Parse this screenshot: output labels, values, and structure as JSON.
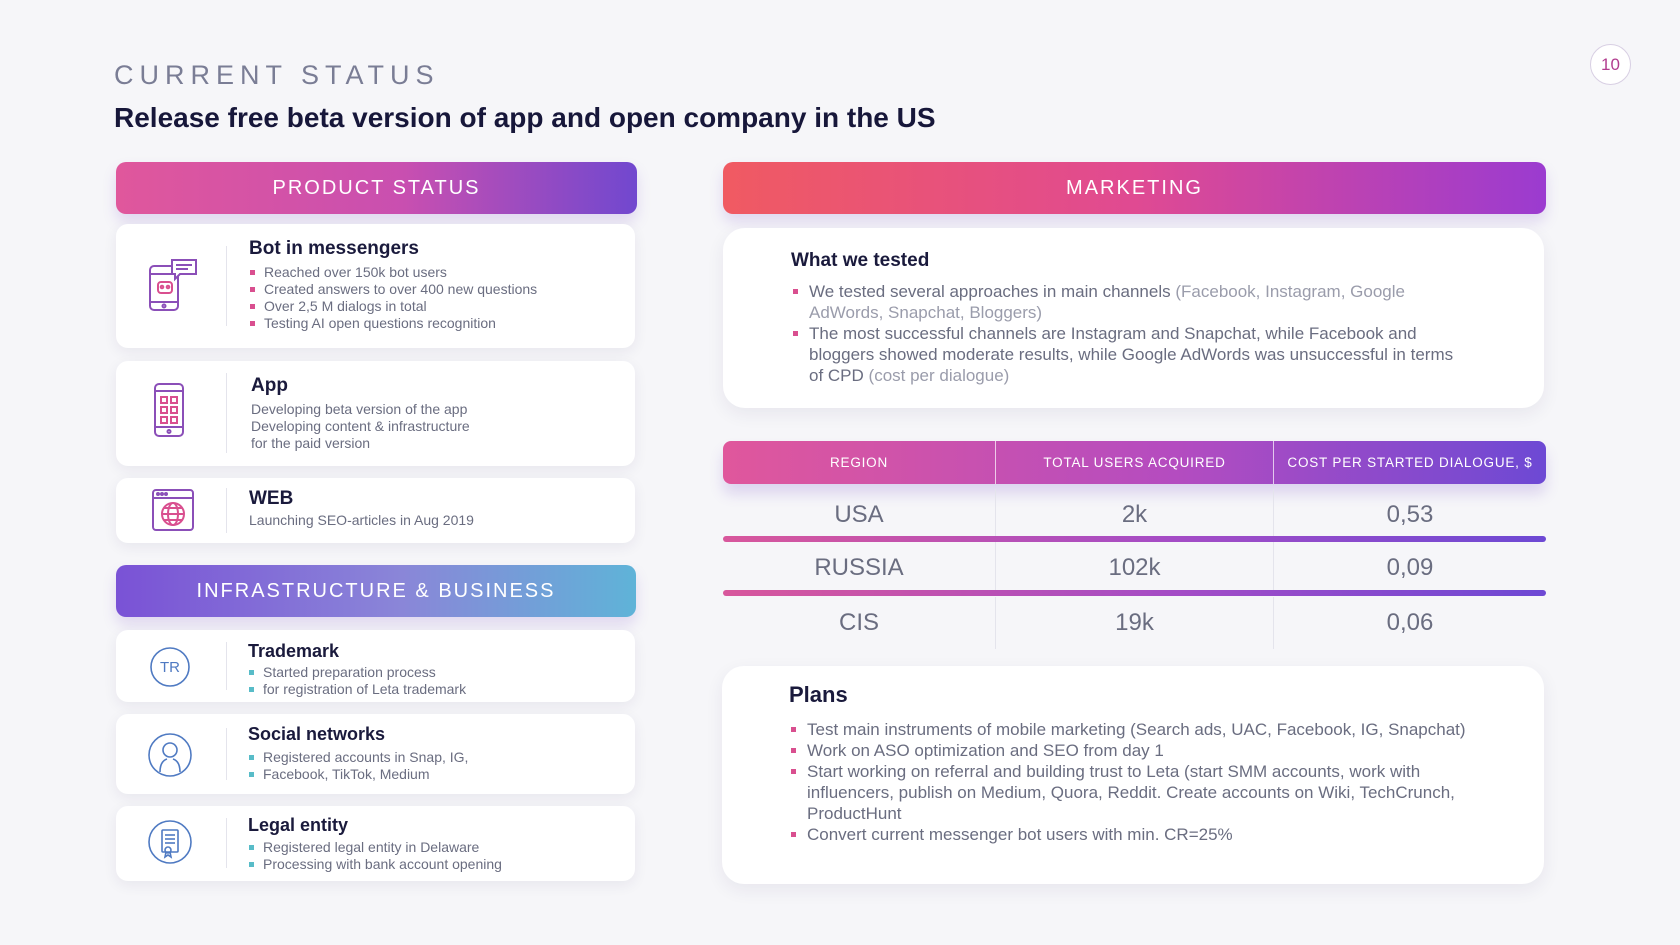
{
  "header": {
    "kicker": "CURRENT STATUS",
    "headline": "Release free beta version of app and open company in the US",
    "page_number": "10"
  },
  "product_status": {
    "label": "PRODUCT STATUS",
    "cards": [
      {
        "icon": "chat-phone-icon",
        "title": "Bot in messengers",
        "bullets": [
          "Reached over 150k bot users",
          "Created answers to over 400 new questions",
          "Over 2,5 M dialogs in total",
          "Testing AI open questions recognition"
        ]
      },
      {
        "icon": "phone-apps-icon",
        "title": "App",
        "lines": [
          "Developing beta version of the app",
          "Developing content & infrastructure",
          "for the paid version"
        ]
      },
      {
        "icon": "browser-globe-icon",
        "title": "WEB",
        "lines": [
          "Launching SEO-articles in Aug 2019"
        ]
      }
    ]
  },
  "infrastructure": {
    "label": "INFRASTRUCTURE & BUSINESS",
    "cards": [
      {
        "icon": "trademark-icon",
        "icon_text": "TR",
        "title": "Trademark",
        "bullets": [
          "Started preparation process",
          "for registration of Leta trademark"
        ]
      },
      {
        "icon": "user-icon",
        "title": "Social networks",
        "bullets": [
          "Registered accounts in Snap, IG,",
          "Facebook, TikTok, Medium"
        ]
      },
      {
        "icon": "certificate-icon",
        "title": "Legal entity",
        "bullets": [
          "Registered legal entity in Delaware",
          "Processing with bank account opening"
        ]
      }
    ]
  },
  "marketing": {
    "label": "MARKETING",
    "tested": {
      "title": "What we tested",
      "items": [
        {
          "text": "We tested several approaches in main channels",
          "muted": "(Facebook, Instagram, Google AdWords, Snapchat, Bloggers)"
        },
        {
          "text": "The most successful channels are Instagram and Snapchat, while Facebook and bloggers showed moderate results, while Google AdWords was unsuccessful in terms of CPD",
          "muted": "(cost per dialogue)"
        }
      ]
    },
    "table": {
      "headers": [
        "REGION",
        "TOTAL USERS ACQUIRED",
        "COST PER STARTED DIALOGUE, $"
      ],
      "rows": [
        [
          "USA",
          "2k",
          "0,53"
        ],
        [
          "RUSSIA",
          "102k",
          "0,09"
        ],
        [
          "CIS",
          "19k",
          "0,06"
        ]
      ]
    },
    "plans": {
      "title": "Plans",
      "items": [
        "Test main instruments of mobile marketing (Search ads, UAC, Facebook, IG, Snapchat)",
        "Work on ASO optimization and SEO from day 1",
        "Start working on referral and building trust to Leta (start SMM accounts, work with influencers, publish on Medium, Quora, Reddit. Create accounts on Wiki, TechCrunch, ProductHunt",
        "Convert current messenger bot users with min. CR=25%"
      ]
    }
  },
  "colors": {
    "bullet_pink": "#d94f8f",
    "bullet_teal": "#58bcc8",
    "icon_purple": "#8b4fb8",
    "icon_blue": "#4f7ac2"
  }
}
